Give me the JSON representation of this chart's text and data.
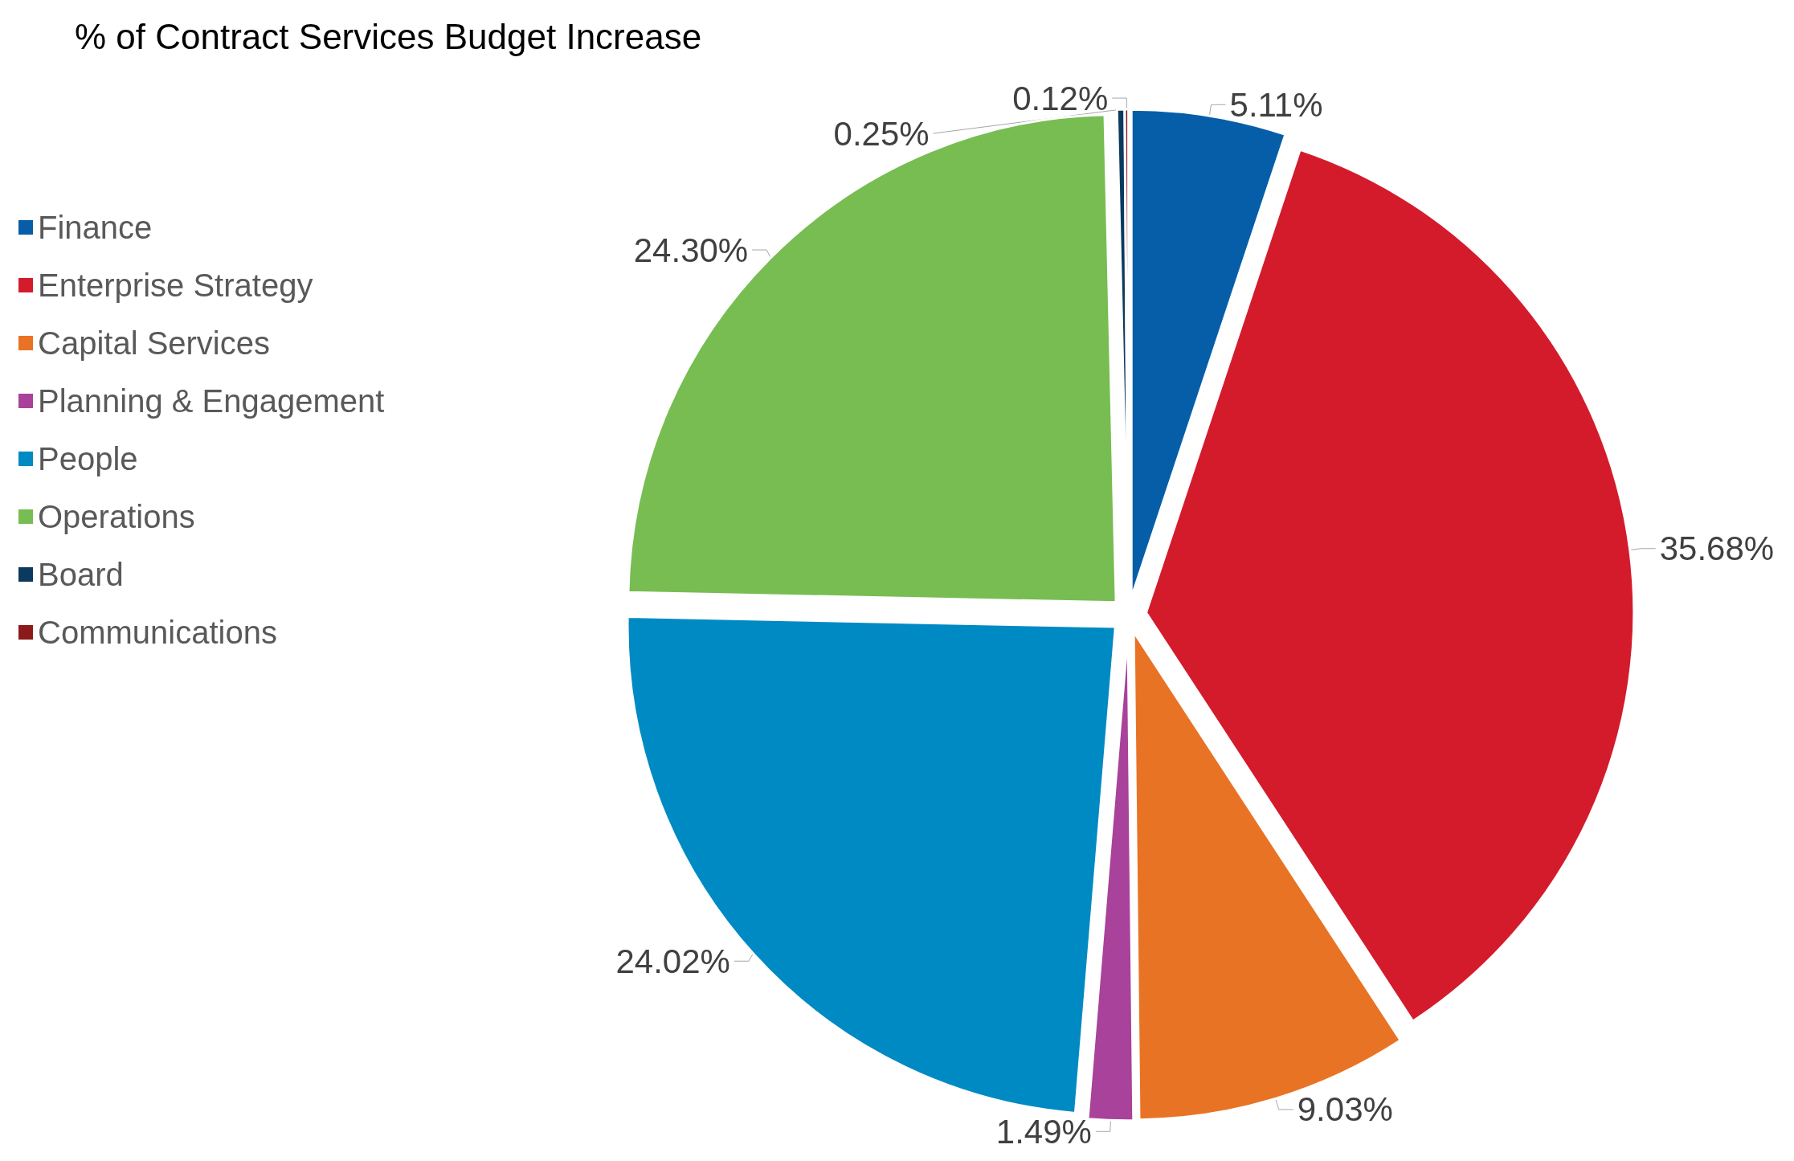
{
  "chart_data": {
    "type": "pie",
    "title": "% of Contract Services Budget Increase",
    "categories": [
      "Finance",
      "Enterprise Strategy",
      "Capital Services",
      "Planning & Engagement",
      "People",
      "Operations",
      "Board",
      "Communications"
    ],
    "values": [
      5.11,
      35.68,
      9.03,
      1.49,
      24.02,
      24.3,
      0.25,
      0.12
    ],
    "value_labels": [
      "5.11%",
      "35.68%",
      "9.03%",
      "1.49%",
      "24.02%",
      "24.30%",
      "0.25%",
      "0.12%"
    ],
    "colors": [
      "#065ea8",
      "#d41b2c",
      "#e97325",
      "#a8429a",
      "#008ac4",
      "#77bd51",
      "#0b3a5f",
      "#8b1a1a"
    ],
    "legend": "left"
  }
}
